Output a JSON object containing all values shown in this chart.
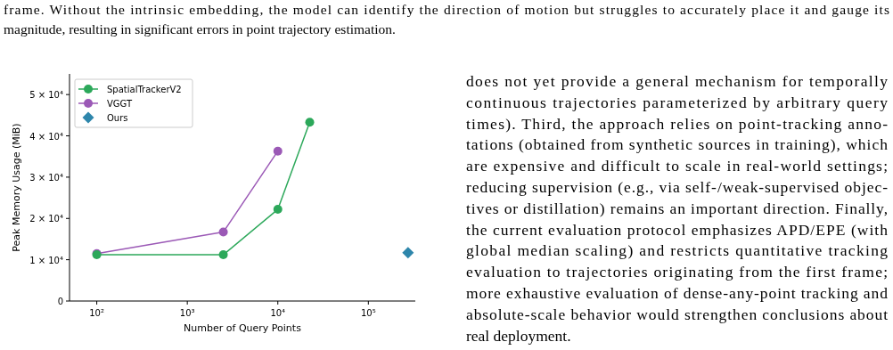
{
  "chart_data": {
    "type": "line",
    "xlabel": "Number of Query Points",
    "ylabel": "Peak Memory Usage (MiB)",
    "log": "x",
    "xlim": [
      50,
      330000
    ],
    "ylim": [
      0,
      55000
    ],
    "xticks": [
      {
        "value": 100,
        "label": "10²"
      },
      {
        "value": 1000,
        "label": "10³"
      },
      {
        "value": 10000,
        "label": "10⁴"
      },
      {
        "value": 100000,
        "label": "10⁵"
      }
    ],
    "yticks": [
      0,
      {
        "value": 10000,
        "label": "1 × 10⁴"
      },
      {
        "value": 20000,
        "label": "2 × 10⁴"
      },
      {
        "value": 30000,
        "label": "3 × 10⁴"
      },
      {
        "value": 40000,
        "label": "4 × 10⁴"
      },
      {
        "value": 50000,
        "label": "5 × 10⁴"
      }
    ],
    "grid": false,
    "legend": "top left",
    "marker": "circle",
    "line_style": "solid",
    "series": [
      {
        "name": "SpatialTrackerV2",
        "color": "#2ca85a",
        "x": [
          100,
          2500,
          10000,
          22500
        ],
        "values": [
          11200,
          11200,
          22200,
          43300
        ]
      },
      {
        "name": "VGGT",
        "color": "#9b59b6",
        "x": [
          100,
          2500,
          10000
        ],
        "values": [
          11500,
          16700,
          36300
        ]
      },
      {
        "name": "Ours",
        "type": "scatter",
        "marker": "diamond",
        "color": "#2e86ab",
        "x": [
          274000
        ],
        "values": [
          11700
        ]
      }
    ],
    "annotations": [
      "frame. Without the intrinsic embedding, the model can identify the direction of motion but struggles to accurately place it and gauge its",
      "magnitude, resulting in significant errors in point trajectory estimation.",
      "does not yet provide a general mechanism for temporally",
      "continuous trajectories parameterized by arbitrary query",
      "times). Third, the approach relies on point-tracking anno-",
      "tations (obtained from synthetic sources in training), which",
      "are expensive and difficult to scale in real-world settings;",
      "reducing supervision (e.g., via self-/weak-supervised objec-",
      "tives or distillation) remains an important direction. Finally,",
      "the current evaluation protocol emphasizes APD/EPE (with",
      "global median scaling) and restricts quantitative tracking",
      "evaluation to trajectories originating from the first frame;",
      "more exhaustive evaluation of dense-any-point tracking and",
      "absolute-scale behavior would strengthen conclusions about",
      "real deployment."
    ]
  }
}
